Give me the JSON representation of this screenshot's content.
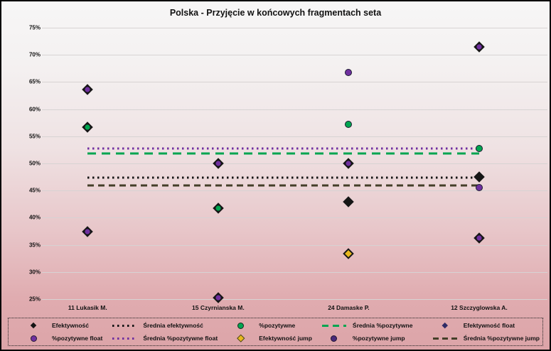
{
  "chart_data": {
    "type": "scatter",
    "title": "Polska - Przyjęcie w końcowych fragmentach seta",
    "categories": [
      "11 Lukasik M.",
      "15 Czyrnianska M.",
      "24 Damaske P.",
      "12 Szczyglowska A."
    ],
    "category_x_percent": [
      8.4,
      34.4,
      60.4,
      86.4
    ],
    "ylim": [
      25,
      75
    ],
    "y_ticks": [
      "75%",
      "70%",
      "65%",
      "60%",
      "55%",
      "50%",
      "45%",
      "40%",
      "35%",
      "30%",
      "25%"
    ],
    "grid": true,
    "legend_position": "bottom",
    "points": [
      {
        "category": 0,
        "value": 63.6,
        "marker": "diamond-purple",
        "series_hint": "%pozytywne float"
      },
      {
        "category": 0,
        "value": 56.7,
        "marker": "diamond-green",
        "series_hint": "%pozytywne"
      },
      {
        "category": 0,
        "value": 37.5,
        "marker": "diamond-purple",
        "series_hint": "%pozytywne float"
      },
      {
        "category": 1,
        "value": 50.0,
        "marker": "diamond-purple",
        "series_hint": "%pozytywne float"
      },
      {
        "category": 1,
        "value": 41.8,
        "marker": "diamond-green",
        "series_hint": "%pozytywne"
      },
      {
        "category": 1,
        "value": 25.2,
        "marker": "diamond-purple",
        "series_hint": "%pozytywne float"
      },
      {
        "category": 2,
        "value": 66.7,
        "marker": "circle-purple",
        "series_hint": "%pozytywne jump"
      },
      {
        "category": 2,
        "value": 57.2,
        "marker": "circle-green",
        "series_hint": "%pozytywne"
      },
      {
        "category": 2,
        "value": 50.0,
        "marker": "diamond-purple",
        "series_hint": "%pozytywne float"
      },
      {
        "category": 2,
        "value": 42.9,
        "marker": "diamond-black",
        "series_hint": "Efektywność"
      },
      {
        "category": 2,
        "value": 33.4,
        "marker": "diamond-gold",
        "series_hint": "Efektywność jump"
      },
      {
        "category": 3,
        "value": 71.5,
        "marker": "diamond-purple",
        "series_hint": "%pozytywne float"
      },
      {
        "category": 3,
        "value": 52.7,
        "marker": "circle-green",
        "series_hint": "%pozytywne"
      },
      {
        "category": 3,
        "value": 47.5,
        "marker": "diamond-black",
        "series_hint": "Efektywność"
      },
      {
        "category": 3,
        "value": 45.5,
        "marker": "circle-purple",
        "series_hint": "%pozytywne jump"
      },
      {
        "category": 3,
        "value": 36.3,
        "marker": "diamond-purple",
        "series_hint": "%pozytywne float"
      }
    ],
    "mean_lines": [
      {
        "label": "Średnia %pozytywne float",
        "value": 52.8,
        "style": "dotted-purple",
        "color": "#7030A0"
      },
      {
        "label": "Średnia %pozytywne",
        "value": 51.8,
        "style": "dashed-green",
        "color": "#00A550"
      },
      {
        "label": "Średnia efektywność",
        "value": 47.4,
        "style": "dotted-black",
        "color": "#141414"
      },
      {
        "label": "Średnia %pozytywne jump",
        "value": 46.0,
        "style": "dashed-olive",
        "color": "#453f29"
      }
    ],
    "legend": [
      {
        "label": "Efektywność",
        "swatch": "diamond-black"
      },
      {
        "label": "Średnia efektywność",
        "swatch": "dotted-black"
      },
      {
        "label": "%pozytywne",
        "swatch": "circle-green"
      },
      {
        "label": "Średnia %pozytywne",
        "swatch": "dashed-green"
      },
      {
        "label": "Efektywność float",
        "swatch": "diamond-navy"
      },
      {
        "label": "%pozytywne float",
        "swatch": "circle-purple"
      },
      {
        "label": "Średnia %pozytywne float",
        "swatch": "dotted-purple"
      },
      {
        "label": "Efektywność jump",
        "swatch": "diamond-gold"
      },
      {
        "label": "%pozytywne jump",
        "swatch": "circle-darkpurple"
      },
      {
        "label": "Średnia %pozytywne jump",
        "swatch": "dashed-olive"
      }
    ],
    "colors": {
      "accent_purple": "#7030A0",
      "accent_green": "#00A550",
      "accent_gold": "#E8B81E",
      "marker_black": "#141414",
      "mean_jump_line": "#453f29",
      "gridline": "#d7d3d3",
      "background_top": "#f7f6f6",
      "background_bottom": "#dca4a8"
    }
  }
}
